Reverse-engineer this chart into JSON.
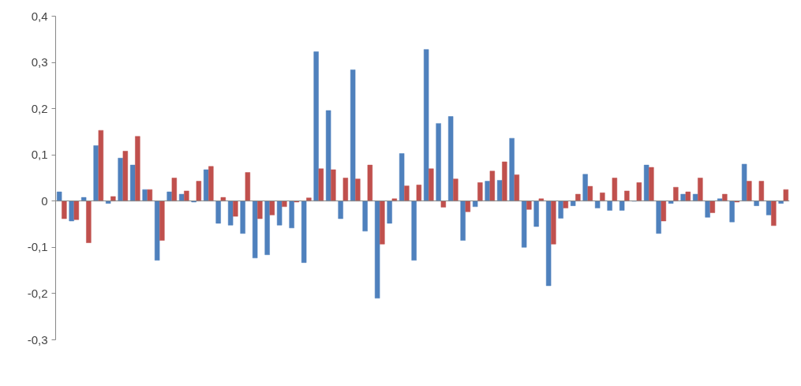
{
  "chart_data": {
    "type": "bar",
    "categories": [
      null,
      null,
      null,
      null,
      null,
      null,
      null,
      null,
      null,
      null,
      null,
      null,
      null,
      null,
      null,
      null,
      null,
      null,
      null,
      null,
      null,
      null,
      null,
      null,
      null,
      null,
      null,
      null,
      null,
      null,
      null,
      null,
      null,
      null,
      null,
      null,
      null,
      null,
      null,
      null,
      null,
      null,
      null,
      null,
      null,
      null,
      null,
      null,
      null,
      null,
      null,
      null,
      null,
      null,
      null,
      null,
      null,
      null,
      null,
      null
    ],
    "series": [
      {
        "color": "#4f81bd",
        "values": [
          0.02,
          -0.043,
          0.008,
          0.12,
          -0.005,
          0.093,
          0.078,
          0.025,
          -0.128,
          0.02,
          0.015,
          -0.002,
          0.068,
          -0.048,
          -0.052,
          -0.07,
          -0.123,
          -0.116,
          -0.052,
          -0.058,
          -0.133,
          0.323,
          0.196,
          -0.038,
          0.284,
          -0.065,
          -0.21,
          -0.048,
          0.103,
          -0.128,
          0.328,
          0.168,
          0.183,
          -0.085,
          -0.012,
          0.043,
          0.045,
          0.136,
          -0.1,
          -0.055,
          -0.183,
          -0.037,
          -0.01,
          0.058,
          -0.015,
          -0.02,
          -0.02,
          0,
          0.078,
          -0.07,
          -0.005,
          0.015,
          0.015,
          -0.035,
          0.005,
          -0.045,
          0.08,
          -0.01,
          -0.03,
          -0.005
        ]
      },
      {
        "color": "#c0504d",
        "values": [
          -0.038,
          -0.04,
          -0.09,
          0.153,
          0.01,
          0.108,
          0.14,
          0.025,
          -0.085,
          0.05,
          0.022,
          0.043,
          0.075,
          0.008,
          -0.033,
          0.062,
          -0.038,
          -0.03,
          -0.012,
          -0.002,
          0.007,
          0.07,
          0.068,
          0.05,
          0.048,
          0.078,
          -0.093,
          0.005,
          0.033,
          0.035,
          0.07,
          -0.013,
          0.048,
          -0.023,
          0.04,
          0.065,
          0.085,
          0.057,
          -0.018,
          0.005,
          -0.093,
          -0.015,
          0.015,
          0.032,
          0.018,
          0.05,
          0.022,
          0.04,
          0.073,
          -0.043,
          0.03,
          0.02,
          0.05,
          -0.025,
          0.015,
          -0.002,
          0.043,
          0.043,
          -0.053,
          0.025
        ]
      }
    ],
    "ylim": [
      -0.3,
      0.4
    ],
    "yticks": [
      {
        "value": -0.3,
        "label": "-0,3"
      },
      {
        "value": -0.2,
        "label": "-0,2"
      },
      {
        "value": -0.1,
        "label": "-0,1"
      },
      0,
      {
        "value": 0.1,
        "label": "0,1"
      },
      {
        "value": 0.2,
        "label": "0,2"
      },
      {
        "value": 0.3,
        "label": "0,3"
      },
      {
        "value": 0.4,
        "label": "0,4"
      }
    ],
    "tick_labels": "y"
  }
}
